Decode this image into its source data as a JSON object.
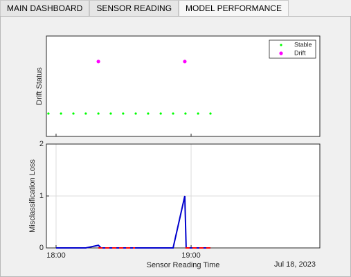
{
  "tabs": [
    "MAIN DASHBOARD",
    "SENSOR READING",
    "MODEL PERFORMANCE"
  ],
  "active_tab": 2,
  "chart_data": [
    {
      "type": "scatter",
      "y_label": "Drift Status",
      "xlim": [
        1075.7,
        1197.2
      ],
      "ylim": [
        -0.44,
        1.49
      ],
      "xticks": [
        1080,
        1140
      ],
      "legend": "upper right",
      "series": [
        {
          "name": "Stable",
          "color": "#00ff00",
          "x": [
            1076.6,
            1082.2,
            1087.7,
            1093.2,
            1098.8,
            1104.3,
            1109.8,
            1115.4,
            1120.9,
            1126.5,
            1132.0,
            1137.5,
            1143.1,
            1148.6
          ],
          "values": [
            0,
            0,
            0,
            0,
            0,
            0,
            0,
            0,
            0,
            0,
            0,
            0,
            0,
            0
          ]
        },
        {
          "name": "Drift",
          "color": "#ff00ff",
          "x": [
            1098.8,
            1137.2
          ],
          "values": [
            1,
            1
          ]
        }
      ]
    },
    {
      "type": "line",
      "y_label": "Misclassification Loss",
      "x_label": "Sensor Reading Time",
      "x_note": "Jul 18, 2023",
      "xlim": [
        1075.7,
        1197.2
      ],
      "ylim": [
        0,
        2
      ],
      "xticks": [
        {
          "value": 1080,
          "label": "18:00"
        },
        {
          "value": 1140,
          "label": "19:00"
        }
      ],
      "yticks": [
        0,
        1,
        2
      ],
      "grid": true,
      "series": [
        {
          "color": "#0000cc",
          "x": [
            1080.0,
            1093.2,
            1098.8,
            1100.0,
            1132.0,
            1137.2,
            1137.8,
            1148.6
          ],
          "values": [
            0,
            0,
            0.05,
            0,
            0,
            1,
            0,
            0
          ]
        },
        {
          "color": "#ff0000",
          "dashed": true,
          "x": [
            1098.8,
            1115.1,
            null,
            1137.5,
            1148.6
          ],
          "values": [
            0,
            0,
            null,
            0,
            0
          ]
        }
      ]
    }
  ]
}
